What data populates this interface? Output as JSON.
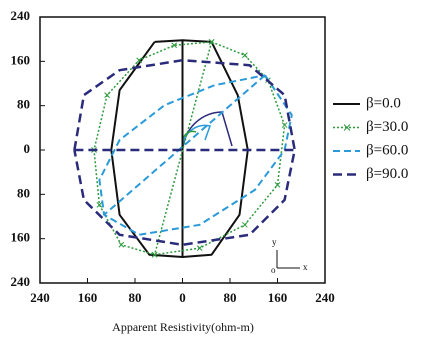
{
  "chart_data": {
    "type": "line",
    "x_label": "Apparent Resistivity(ohm-m)",
    "xlim": [
      -240,
      240
    ],
    "ylim": [
      -240,
      240
    ],
    "xticks": [
      {
        "value": -240,
        "label": "240"
      },
      {
        "value": -160,
        "label": "160"
      },
      {
        "value": -80,
        "label": "80"
      },
      0,
      80,
      160,
      240
    ],
    "yticks": [
      {
        "value": -240,
        "label": "240"
      },
      {
        "value": -160,
        "label": "160"
      },
      {
        "value": -80,
        "label": "80"
      },
      0,
      80,
      160,
      240
    ],
    "annotations": [
      "y",
      "o",
      "x"
    ],
    "series": [
      {
        "name": "β=0.0",
        "color": "#111111",
        "x": [
          -47,
          0,
          49,
          93,
          110,
          96,
          49,
          0,
          -56,
          -106,
          -120,
          -106,
          -47,
          null,
          0,
          0
        ],
        "values": [
          195,
          198,
          195,
          99,
          0,
          -117,
          -189,
          -193,
          -189,
          -117,
          0,
          108,
          195,
          null,
          198,
          -193
        ]
      },
      {
        "name": "β=30.0",
        "color": "#2e9a3e",
        "marker": "x",
        "x": [
          49,
          105,
          144,
          172,
          160,
          105,
          29,
          -47,
          -103,
          -140,
          -149,
          -127,
          -73,
          -14,
          49,
          null,
          49,
          -47
        ],
        "values": [
          195,
          171,
          126,
          45,
          -63,
          -135,
          -177,
          -189,
          -171,
          -99,
          0,
          99,
          162,
          189,
          195,
          null,
          195,
          -189
        ]
      },
      {
        "name": "β=60.0",
        "color": "#2a9ad8",
        "x": [
          139,
          184,
          172,
          122,
          29,
          -73,
          -132,
          -140,
          -106,
          -30,
          54,
          139,
          null,
          139,
          -132
        ],
        "values": [
          135,
          63,
          0,
          -72,
          -135,
          -153,
          -117,
          -54,
          18,
          81,
          117,
          135,
          null,
          135,
          -117
        ]
      },
      {
        "name": "β=90.0",
        "color": "#2b2b7c",
        "x": [
          -182,
          -166,
          -106,
          0,
          113,
          172,
          189,
          172,
          113,
          0,
          -106,
          -166,
          -182,
          null,
          -182,
          189
        ],
        "values": [
          0,
          99,
          144,
          162,
          153,
          99,
          0,
          -90,
          -153,
          -171,
          -153,
          -90,
          0,
          null,
          0,
          0
        ]
      }
    ]
  }
}
